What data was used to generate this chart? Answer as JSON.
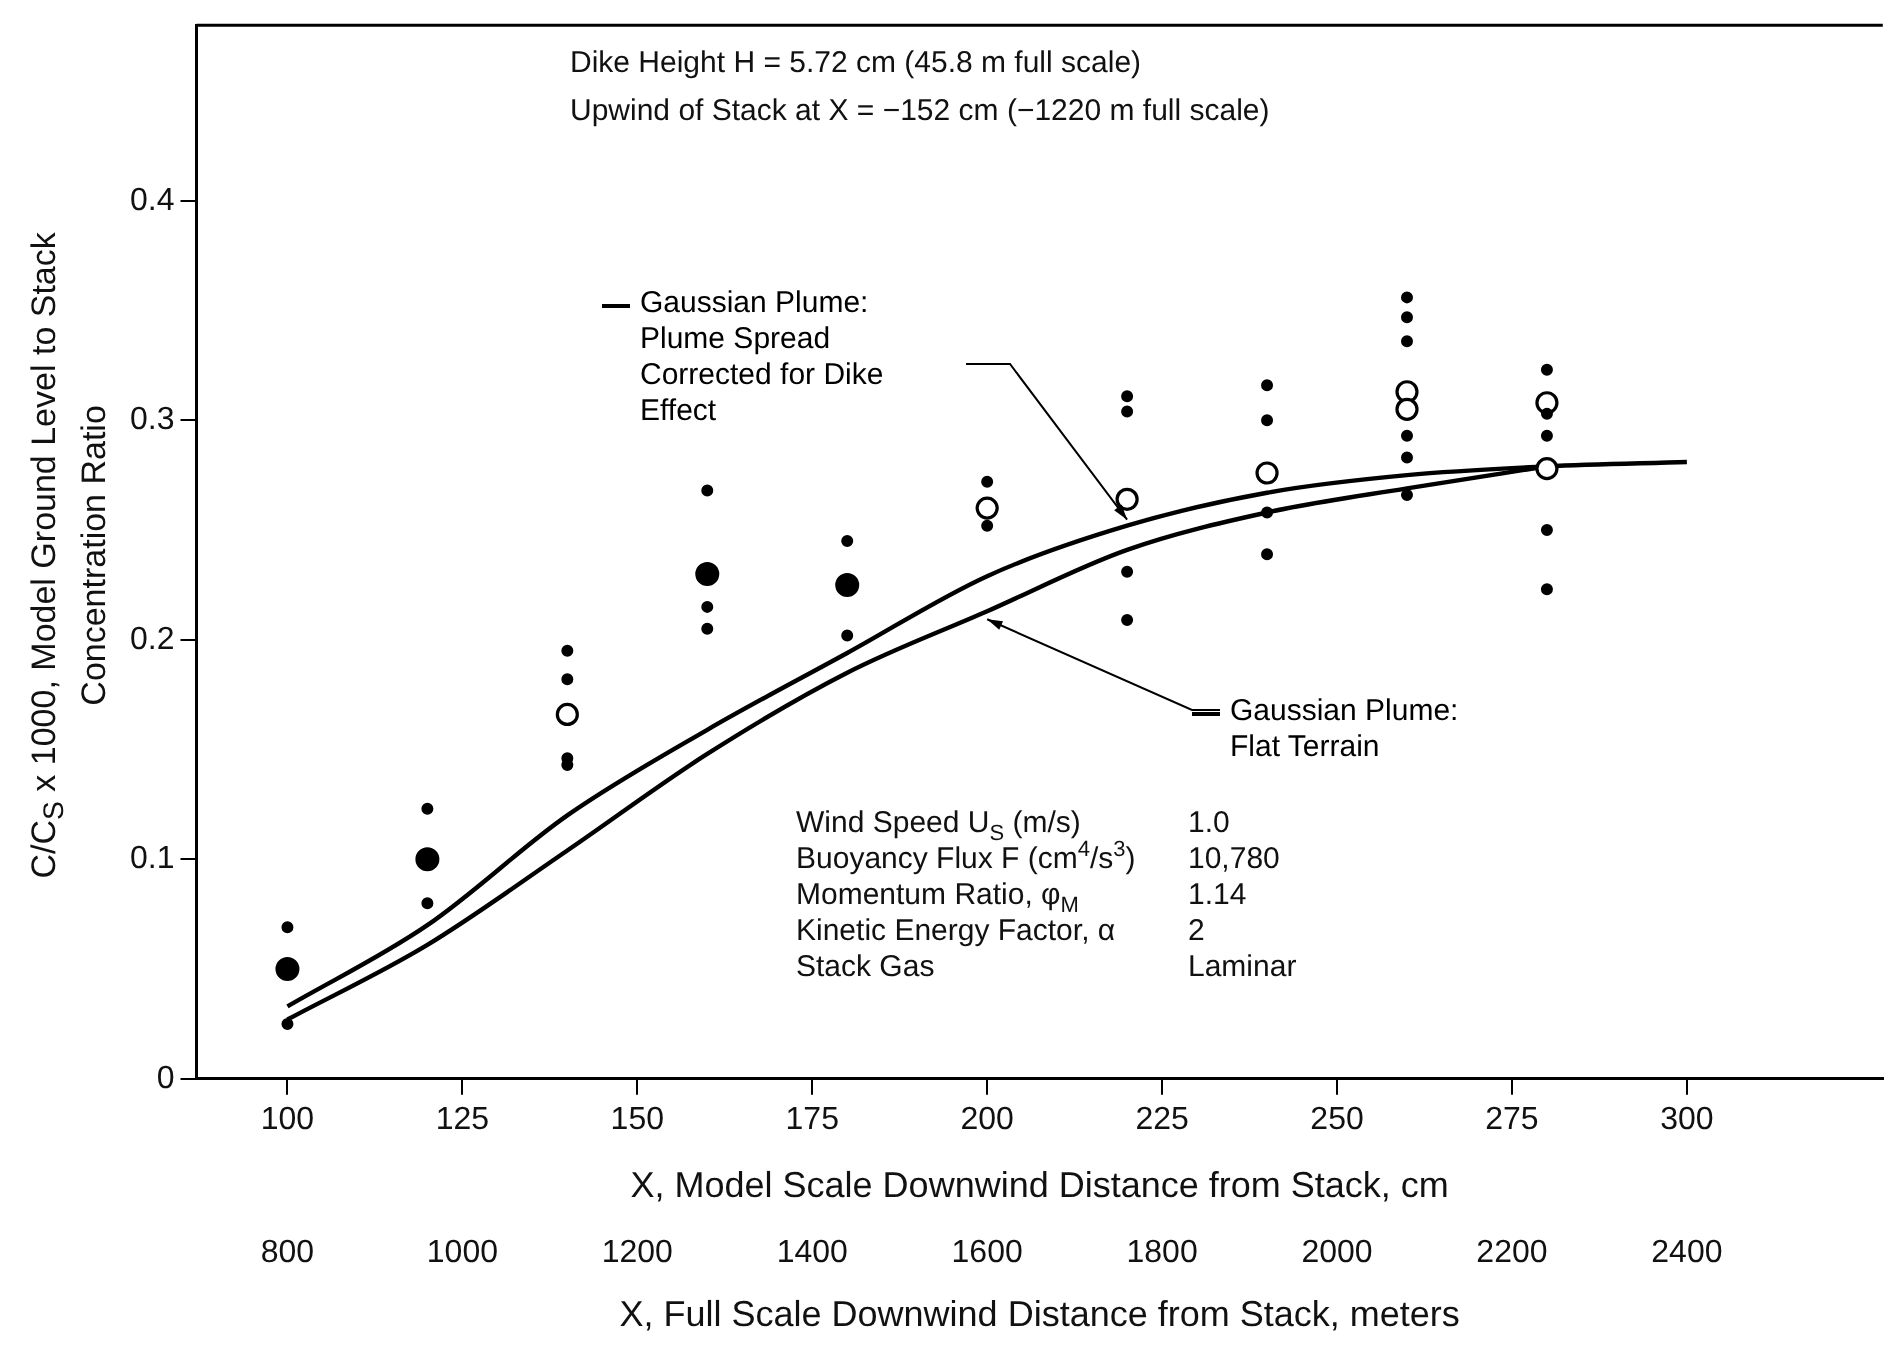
{
  "chart_data": {
    "type": "scatter",
    "xlabel": "X, Model Scale Downwind Distance from Stack, cm",
    "x2label": "X, Full Scale Downwind Distance from Stack, meters",
    "ylabel": "C/C$_{S}$ x 1000, Model Ground Level to Stack Concentration Ratio",
    "xlim": [
      87,
      328
    ],
    "xticks": [
      100,
      125,
      150,
      175,
      200,
      225,
      250,
      275,
      300
    ],
    "x2lim": [
      696,
      2624
    ],
    "x2ticks": [
      800,
      1000,
      1200,
      1400,
      1600,
      1800,
      2000,
      2200,
      2400
    ],
    "ylim": [
      0,
      0.48
    ],
    "yticks": [
      0,
      0.1,
      0.2,
      0.3,
      0.4
    ],
    "grid": false,
    "legend": "top",
    "annotations": [
      "Dike Height  H = 5.72 cm (45.8 m full scale)",
      "Upwind of Stack at X = −152 cm (−1220 m full scale)",
      "Wind Speed U$_{S}$ (m/s)",
      "1.0",
      "Buoyancy Flux F (cm$^{4}$/s$^{3}$)",
      "10,780",
      "Momentum Ratio, φ$_{M}$",
      "1.14",
      "Kinetic Energy Factor, α",
      "2",
      "Stack Gas",
      "Laminar"
    ],
    "series": [
      {
        "type": "scatter",
        "marker": "circle",
        "color": "#000000",
        "x": [
          100,
          100,
          120,
          120,
          140,
          140,
          140,
          140,
          160,
          160,
          160,
          180,
          180,
          200,
          200,
          220,
          220,
          220,
          220,
          240,
          240,
          240,
          240,
          260,
          260,
          260,
          260,
          260,
          260,
          280,
          280,
          280,
          280,
          280
        ],
        "values": [
          0.069,
          0.025,
          0.123,
          0.08,
          0.195,
          0.182,
          0.146,
          0.143,
          0.268,
          0.215,
          0.205,
          0.245,
          0.202,
          0.272,
          0.252,
          0.311,
          0.304,
          0.231,
          0.209,
          0.316,
          0.3,
          0.258,
          0.239,
          0.356,
          0.347,
          0.336,
          0.293,
          0.283,
          0.266,
          0.323,
          0.303,
          0.293,
          0.25,
          0.223
        ]
      },
      {
        "type": "scatter",
        "marker": "circle",
        "color": "#000000",
        "x": [
          100,
          120,
          160,
          180
        ],
        "values": [
          0.05,
          0.1,
          0.23,
          0.225
        ]
      },
      {
        "type": "scatter",
        "marker": "circle",
        "color": "#000000",
        "x": [
          140,
          200,
          220,
          240,
          260,
          260,
          280,
          280
        ],
        "values": [
          0.166,
          0.26,
          0.264,
          0.276,
          0.313,
          0.305,
          0.308,
          0.278
        ]
      },
      {
        "type": "line",
        "marker": "none",
        "line_style": "solid",
        "color": "#000000",
        "name": "Gaussian Plume: Plume Spread Corrected for Dike Effect",
        "x": [
          100,
          120,
          140,
          160,
          180,
          200,
          220,
          240,
          260,
          280,
          300
        ],
        "values": [
          0.033,
          0.07,
          0.12,
          0.159,
          0.194,
          0.229,
          0.252,
          0.267,
          0.275,
          0.279,
          0.281
        ]
      },
      {
        "type": "line",
        "marker": "none",
        "line_style": "solid",
        "color": "#000000",
        "name": "Gaussian Plume: Flat Terrain",
        "x": [
          100,
          120,
          140,
          160,
          180,
          200,
          220,
          240,
          260,
          280
        ],
        "values": [
          0.027,
          0.061,
          0.104,
          0.148,
          0.185,
          0.213,
          0.241,
          0.258,
          0.269,
          0.279
        ]
      }
    ]
  }
}
